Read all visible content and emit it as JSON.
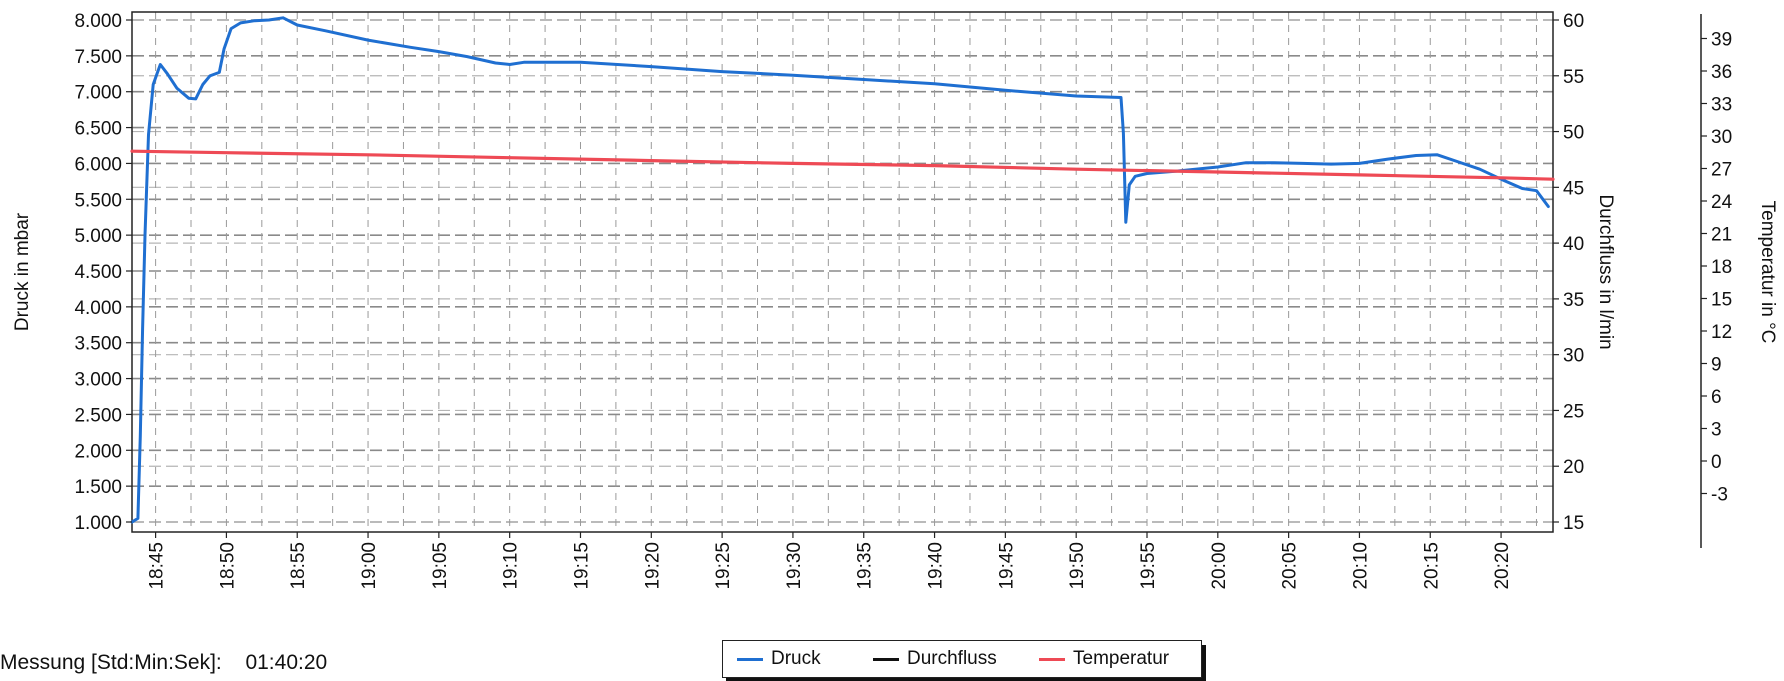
{
  "chart_data": {
    "type": "line",
    "ylabel_left": "Druck in mbar",
    "ylabel_right1": "Durchfluss in l/min",
    "ylabel_right2": "Temperatur in °C",
    "x_ticks": [
      "18:45",
      "18:50",
      "18:55",
      "19:00",
      "19:05",
      "19:10",
      "19:15",
      "19:20",
      "19:25",
      "19:30",
      "19:35",
      "19:40",
      "19:45",
      "19:50",
      "19:55",
      "20:00",
      "20:05",
      "20:10",
      "20:15",
      "20:20"
    ],
    "xlim": [
      "18:43:20",
      "20:23:40"
    ],
    "y_left": {
      "lim": [
        1000,
        8000
      ],
      "ticks": [
        {
          "v": 1000,
          "label": "1.000"
        },
        {
          "v": 1500,
          "label": "1.500"
        },
        {
          "v": 2000,
          "label": "2.000"
        },
        {
          "v": 2500,
          "label": "2.500"
        },
        {
          "v": 3000,
          "label": "3.000"
        },
        {
          "v": 3500,
          "label": "3.500"
        },
        {
          "v": 4000,
          "label": "4.000"
        },
        {
          "v": 4500,
          "label": "4.500"
        },
        {
          "v": 5000,
          "label": "5.000"
        },
        {
          "v": 5500,
          "label": "5.500"
        },
        {
          "v": 6000,
          "label": "6.000"
        },
        {
          "v": 6500,
          "label": "6.500"
        },
        {
          "v": 7000,
          "label": "7.000"
        },
        {
          "v": 7500,
          "label": "7.500"
        },
        {
          "v": 8000,
          "label": "8.000"
        }
      ]
    },
    "y_right1": {
      "lim": [
        15,
        60
      ],
      "ticks": [
        {
          "v": 15,
          "label": "15"
        },
        {
          "v": 20,
          "label": "20"
        },
        {
          "v": 25,
          "label": "25"
        },
        {
          "v": 30,
          "label": "30"
        },
        {
          "v": 35,
          "label": "35"
        },
        {
          "v": 40,
          "label": "40"
        },
        {
          "v": 45,
          "label": "45"
        },
        {
          "v": 50,
          "label": "50"
        },
        {
          "v": 55,
          "label": "55"
        },
        {
          "v": 60,
          "label": "60"
        }
      ]
    },
    "y_right2": {
      "lim": [
        -6,
        42
      ],
      "ticks": [
        {
          "v": -3,
          "label": "-3"
        },
        {
          "v": 0,
          "label": "0"
        },
        {
          "v": 3,
          "label": "3"
        },
        {
          "v": 6,
          "label": "6"
        },
        {
          "v": 9,
          "label": "9"
        },
        {
          "v": 12,
          "label": "12"
        },
        {
          "v": 15,
          "label": "15"
        },
        {
          "v": 18,
          "label": "18"
        },
        {
          "v": 21,
          "label": "21"
        },
        {
          "v": 24,
          "label": "24"
        },
        {
          "v": 27,
          "label": "27"
        },
        {
          "v": 30,
          "label": "30"
        },
        {
          "v": 33,
          "label": "33"
        },
        {
          "v": 36,
          "label": "36"
        },
        {
          "v": 39,
          "label": "39"
        }
      ]
    },
    "series": [
      {
        "name": "Druck",
        "axis": "left",
        "color": "#1f6fd1",
        "points": [
          [
            "18:43:20",
            1000
          ],
          [
            "18:43:45",
            1050
          ],
          [
            "18:43:55",
            2200
          ],
          [
            "18:44:05",
            3700
          ],
          [
            "18:44:15",
            5000
          ],
          [
            "18:44:30",
            6400
          ],
          [
            "18:44:50",
            7100
          ],
          [
            "18:45:20",
            7380
          ],
          [
            "18:45:50",
            7250
          ],
          [
            "18:46:30",
            7050
          ],
          [
            "18:47:20",
            6910
          ],
          [
            "18:47:50",
            6900
          ],
          [
            "18:48:20",
            7100
          ],
          [
            "18:48:50",
            7220
          ],
          [
            "18:49:30",
            7270
          ],
          [
            "18:49:50",
            7600
          ],
          [
            "18:50:20",
            7880
          ],
          [
            "18:51:00",
            7960
          ],
          [
            "18:52:00",
            7990
          ],
          [
            "18:53:00",
            8000
          ],
          [
            "18:54:00",
            8030
          ],
          [
            "18:55:00",
            7930
          ],
          [
            "18:57:00",
            7850
          ],
          [
            "19:00:00",
            7720
          ],
          [
            "19:03:00",
            7620
          ],
          [
            "19:05:00",
            7560
          ],
          [
            "19:07:00",
            7490
          ],
          [
            "19:09:00",
            7400
          ],
          [
            "19:10:00",
            7380
          ],
          [
            "19:11:00",
            7410
          ],
          [
            "19:15:00",
            7410
          ],
          [
            "19:20:00",
            7350
          ],
          [
            "19:25:00",
            7280
          ],
          [
            "19:30:00",
            7230
          ],
          [
            "19:35:00",
            7170
          ],
          [
            "19:40:00",
            7110
          ],
          [
            "19:45:00",
            7020
          ],
          [
            "19:50:00",
            6940
          ],
          [
            "19:53:10",
            6920
          ],
          [
            "19:53:20",
            6420
          ],
          [
            "19:53:30",
            5180
          ],
          [
            "19:53:45",
            5700
          ],
          [
            "19:54:10",
            5820
          ],
          [
            "19:55:00",
            5860
          ],
          [
            "19:57:00",
            5890
          ],
          [
            "20:00:00",
            5950
          ],
          [
            "20:02:00",
            6010
          ],
          [
            "20:04:00",
            6010
          ],
          [
            "20:06:00",
            6000
          ],
          [
            "20:08:00",
            5990
          ],
          [
            "20:10:00",
            6000
          ],
          [
            "20:12:00",
            6060
          ],
          [
            "20:14:00",
            6110
          ],
          [
            "20:15:30",
            6120
          ],
          [
            "20:17:00",
            6020
          ],
          [
            "20:18:30",
            5920
          ],
          [
            "20:20:00",
            5780
          ],
          [
            "20:21:30",
            5650
          ],
          [
            "20:22:30",
            5620
          ],
          [
            "20:23:20",
            5400
          ]
        ]
      },
      {
        "name": "Durchfluss",
        "axis": "right1",
        "color": "#111111",
        "points": []
      },
      {
        "name": "Temperatur",
        "axis": "left",
        "color": "#ee4a55",
        "points": [
          [
            "18:43:20",
            6170
          ],
          [
            "18:50:00",
            6150
          ],
          [
            "19:00:00",
            6120
          ],
          [
            "19:10:00",
            6080
          ],
          [
            "19:20:00",
            6040
          ],
          [
            "19:30:00",
            6000
          ],
          [
            "19:40:00",
            5970
          ],
          [
            "19:50:00",
            5920
          ],
          [
            "20:00:00",
            5880
          ],
          [
            "20:10:00",
            5840
          ],
          [
            "20:20:00",
            5800
          ],
          [
            "20:23:40",
            5780
          ]
        ]
      }
    ],
    "grid": true,
    "legend": "bottom-center"
  },
  "footer": {
    "label": "Messung [Std:Min:Sek]:",
    "value": "01:40:20"
  },
  "legend_items": [
    {
      "label": "Druck",
      "color": "#1f6fd1"
    },
    {
      "label": "Durchfluss",
      "color": "#111111"
    },
    {
      "label": "Temperatur",
      "color": "#ee4a55"
    }
  ]
}
